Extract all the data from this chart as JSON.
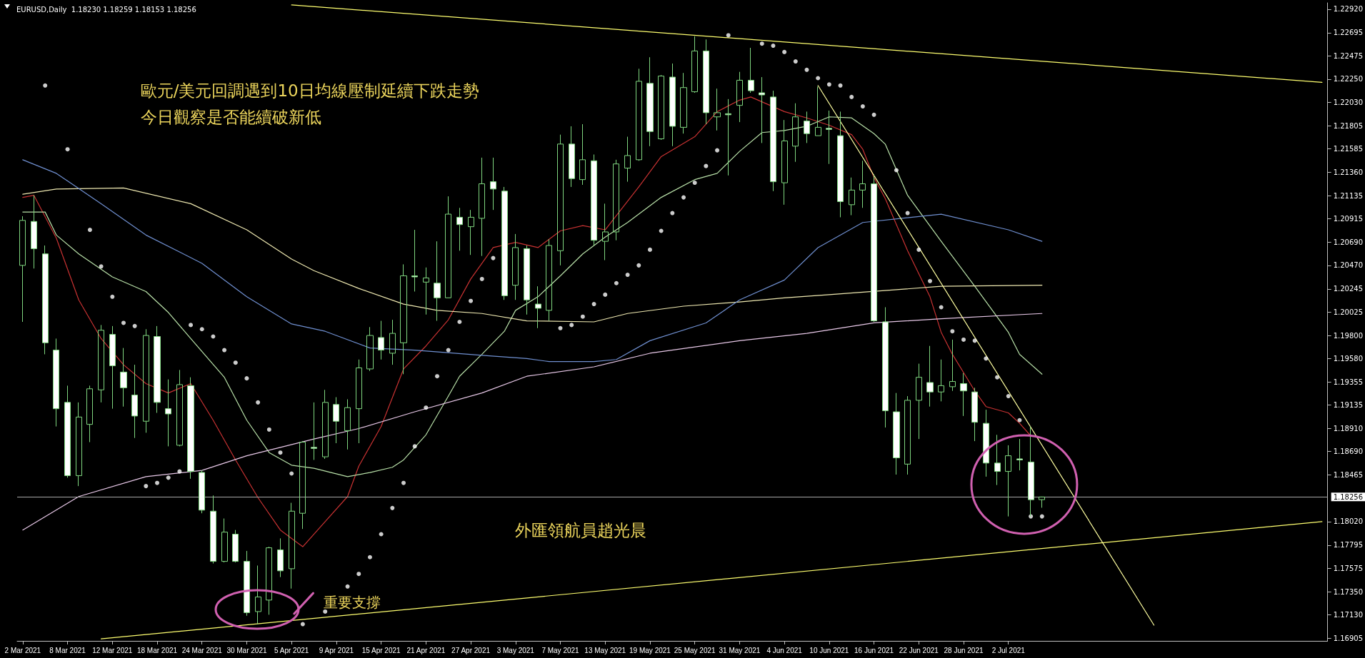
{
  "chart_data": {
    "type": "candlestick",
    "title": "EURUSD,Daily  1.18230 1.18259 1.18153 1.18256",
    "categories": [
      "2 Mar 2021",
      null,
      null,
      null,
      "8 Mar 2021",
      null,
      null,
      null,
      "12 Mar 2021",
      null,
      null,
      null,
      "18 Mar 2021",
      null,
      null,
      null,
      "24 Mar 2021",
      null,
      null,
      null,
      "30 Mar 2021",
      null,
      null,
      null,
      "5 Apr 2021",
      null,
      null,
      null,
      "9 Apr 2021",
      null,
      null,
      null,
      "15 Apr 2021",
      null,
      null,
      null,
      "21 Apr 2021",
      null,
      null,
      null,
      "27 Apr 2021",
      null,
      null,
      null,
      "3 May 2021",
      null,
      null,
      null,
      "7 May 2021",
      null,
      null,
      null,
      "13 May 2021",
      null,
      null,
      null,
      "19 May 2021",
      null,
      null,
      null,
      "25 May 2021",
      null,
      null,
      null,
      "31 May 2021",
      null,
      null,
      null,
      "4 Jun 2021",
      null,
      null,
      null,
      "10 Jun 2021",
      null,
      null,
      null,
      "16 Jun 2021",
      null,
      null,
      null,
      "22 Jun 2021",
      null,
      null,
      null,
      "28 Jun 2021",
      null,
      null,
      null,
      "2 Jul 2021",
      null,
      null,
      null,
      null,
      null,
      null,
      null,
      null,
      null,
      null,
      null,
      null,
      null,
      null,
      null,
      null,
      null,
      null,
      null,
      null,
      null,
      null,
      null,
      null,
      null,
      null,
      null,
      null
    ],
    "color": "#7fd67f",
    "ohlc": [
      [
        1.2047,
        1.2094,
        1.1993,
        1.209
      ],
      [
        1.2089,
        1.2114,
        1.2044,
        1.2063
      ],
      [
        1.2058,
        1.2066,
        1.1962,
        1.1973
      ],
      [
        1.1966,
        1.1977,
        1.1893,
        1.191
      ],
      [
        1.1916,
        1.1932,
        1.1844,
        1.1846
      ],
      [
        1.1846,
        1.1916,
        1.1836,
        1.1902
      ],
      [
        1.1895,
        1.1932,
        1.1878,
        1.1929
      ],
      [
        1.1928,
        1.199,
        1.1916,
        1.1985
      ],
      [
        1.1981,
        1.1989,
        1.191,
        1.1951
      ],
      [
        1.1945,
        1.1968,
        1.1912,
        1.193
      ],
      [
        1.1923,
        1.1952,
        1.1882,
        1.1903
      ],
      [
        1.1898,
        1.1986,
        1.1887,
        1.198
      ],
      [
        1.1979,
        1.1989,
        1.1906,
        1.1916
      ],
      [
        1.191,
        1.1938,
        1.1874,
        1.1905
      ],
      [
        1.1875,
        1.1947,
        1.1874,
        1.1933
      ],
      [
        1.1932,
        1.194,
        1.1843,
        1.185
      ],
      [
        1.1849,
        1.1851,
        1.181,
        1.1813
      ],
      [
        1.1812,
        1.1827,
        1.1762,
        1.1764
      ],
      [
        1.1764,
        1.1805,
        1.1763,
        1.1792
      ],
      [
        1.179,
        1.1794,
        1.1763,
        1.1764
      ],
      [
        1.1764,
        1.1774,
        1.1712,
        1.1715
      ],
      [
        1.1716,
        1.176,
        1.1704,
        1.173
      ],
      [
        1.1727,
        1.1778,
        1.1713,
        1.1777
      ],
      [
        1.1775,
        1.1786,
        1.1749,
        1.1755
      ],
      [
        1.1757,
        1.182,
        1.1738,
        1.1812
      ],
      [
        1.181,
        1.1879,
        1.1795,
        1.1878
      ],
      [
        1.1873,
        1.1916,
        1.1861,
        1.1872
      ],
      [
        1.1864,
        1.1928,
        1.1862,
        1.1916
      ],
      [
        1.1914,
        1.1921,
        1.1877,
        1.1898
      ],
      [
        1.1889,
        1.1919,
        1.1871,
        1.1911
      ],
      [
        1.191,
        1.1957,
        1.1877,
        1.1949
      ],
      [
        1.1948,
        1.1988,
        1.1946,
        1.198
      ],
      [
        1.1978,
        1.1994,
        1.1957,
        1.1966
      ],
      [
        1.1963,
        1.1995,
        1.1952,
        1.1982
      ],
      [
        1.1973,
        1.2048,
        1.1943,
        1.2037
      ],
      [
        1.2037,
        1.2081,
        1.2022,
        1.2036
      ],
      [
        1.2031,
        1.2045,
        1.2,
        1.2035
      ],
      [
        1.203,
        1.207,
        1.1994,
        1.2016
      ],
      [
        1.2016,
        1.2113,
        1.2016,
        1.2096
      ],
      [
        1.2093,
        1.2102,
        1.2061,
        1.2086
      ],
      [
        1.2084,
        1.21,
        1.2057,
        1.2093
      ],
      [
        1.2092,
        1.215,
        1.2056,
        1.2125
      ],
      [
        1.2127,
        1.215,
        1.21,
        1.212
      ],
      [
        1.2118,
        1.2122,
        1.2014,
        1.2018
      ],
      [
        1.2028,
        1.2077,
        1.2014,
        1.2064
      ],
      [
        1.2063,
        1.2066,
        1.2,
        1.2014
      ],
      [
        1.201,
        1.2027,
        1.1987,
        1.2006
      ],
      [
        1.2004,
        1.2072,
        1.1994,
        1.2066
      ],
      [
        1.2061,
        1.2172,
        1.2047,
        1.2163
      ],
      [
        1.2163,
        1.218,
        1.2122,
        1.213
      ],
      [
        1.2129,
        1.2182,
        1.2124,
        1.2148
      ],
      [
        1.2147,
        1.2153,
        1.2066,
        1.2071
      ],
      [
        1.207,
        1.2106,
        1.2052,
        1.2079
      ],
      [
        1.2079,
        1.2148,
        1.2071,
        1.2144
      ],
      [
        1.214,
        1.217,
        1.2127,
        1.2152
      ],
      [
        1.2148,
        1.2235,
        1.2147,
        1.2223
      ],
      [
        1.2221,
        1.2246,
        1.2161,
        1.2175
      ],
      [
        1.2168,
        1.2229,
        1.2167,
        1.2228
      ],
      [
        1.2227,
        1.224,
        1.2161,
        1.218
      ],
      [
        1.2179,
        1.2231,
        1.2173,
        1.2217
      ],
      [
        1.2213,
        1.2266,
        1.2212,
        1.2252
      ],
      [
        1.2252,
        1.2263,
        1.2182,
        1.2193
      ],
      [
        1.2189,
        1.2216,
        1.2176,
        1.2193
      ],
      [
        1.2192,
        1.2206,
        1.2133,
        1.2191
      ],
      [
        1.22,
        1.2232,
        1.2184,
        1.2224
      ],
      [
        1.2224,
        1.2255,
        1.2212,
        1.2214
      ],
      [
        1.2212,
        1.2227,
        1.2164,
        1.221
      ],
      [
        1.2208,
        1.2214,
        1.2118,
        1.2127
      ],
      [
        1.2126,
        1.2186,
        1.2105,
        1.2166
      ],
      [
        1.2161,
        1.2202,
        1.2146,
        1.2189
      ],
      [
        1.2185,
        1.2194,
        1.2164,
        1.2173
      ],
      [
        1.2171,
        1.2218,
        1.2171,
        1.2179
      ],
      [
        1.2178,
        1.2195,
        1.2144,
        1.2177
      ],
      [
        1.2171,
        1.2194,
        1.2093,
        1.2108
      ],
      [
        1.2105,
        1.2131,
        1.2095,
        1.2119
      ],
      [
        1.2119,
        1.2147,
        1.2102,
        1.2125
      ],
      [
        1.2125,
        1.2134,
        1.1993,
        1.1994
      ],
      [
        1.1993,
        1.2007,
        1.1892,
        1.1908
      ],
      [
        1.1907,
        1.1925,
        1.1847,
        1.1863
      ],
      [
        1.1857,
        1.1922,
        1.1847,
        1.1918
      ],
      [
        1.1918,
        1.1953,
        1.1881,
        1.194
      ],
      [
        1.1935,
        1.197,
        1.1912,
        1.1926
      ],
      [
        1.1926,
        1.1957,
        1.1917,
        1.1932
      ],
      [
        1.1931,
        1.1976,
        1.1927,
        1.1936
      ],
      [
        1.1934,
        1.1944,
        1.1903,
        1.1927
      ],
      [
        1.1926,
        1.193,
        1.1879,
        1.1897
      ],
      [
        1.1896,
        1.1909,
        1.1845,
        1.1858
      ],
      [
        1.1858,
        1.1885,
        1.1837,
        1.185
      ],
      [
        1.185,
        1.1875,
        1.1807,
        1.1865
      ],
      [
        1.1862,
        1.1881,
        1.1851,
        1.1861
      ],
      [
        1.1859,
        1.1893,
        1.1807,
        1.1823
      ],
      [
        1.1823,
        1.18259,
        1.18153,
        1.18256
      ],
      null,
      null,
      null,
      null,
      null,
      null,
      null,
      null,
      null,
      null,
      null,
      null,
      null,
      null,
      null,
      null,
      null,
      null,
      null,
      null,
      null,
      null,
      null,
      null,
      null
    ],
    "series": [
      {
        "type": "line",
        "color": "#c83232",
        "values": [
          1.2112,
          1.2114,
          null,
          1.2073,
          null,
          1.2014,
          null,
          1.1977,
          null,
          1.1952,
          null,
          1.1934,
          null,
          1.1925,
          null,
          1.1934,
          null,
          1.1899,
          null,
          1.1861,
          null,
          1.1825,
          null,
          1.1794,
          null,
          1.1778,
          null,
          1.1802,
          null,
          1.1826,
          1.1855,
          null,
          1.1893,
          null,
          1.1948,
          null,
          1.197,
          null,
          1.1995,
          null,
          1.2034,
          null,
          1.2064,
          null,
          1.2069,
          null,
          1.2064,
          null,
          1.208,
          null,
          1.2085,
          null,
          1.2081,
          null,
          null,
          1.2122,
          null,
          1.2151,
          null,
          null,
          1.217,
          null,
          1.2194,
          null,
          1.2205,
          1.2208,
          null,
          null,
          1.2194,
          null,
          1.2188,
          null,
          1.2181,
          null,
          1.2172,
          1.2158,
          1.2131,
          1.2111,
          null,
          1.2061,
          null,
          1.2017,
          1.1983,
          1.1962,
          null,
          1.1927,
          1.1912,
          null,
          1.1906,
          1.1896,
          1.1884,
          null,
          null,
          null,
          null,
          null,
          null,
          null,
          null,
          null,
          null,
          null,
          null,
          null,
          null,
          null,
          null,
          null,
          null,
          null,
          null,
          null,
          null,
          null,
          null,
          null,
          null
        ]
      },
      {
        "type": "line",
        "color": "#b8e0a8",
        "values": [
          1.2098,
          null,
          1.2098,
          1.2076,
          null,
          1.2058,
          null,
          null,
          1.2036,
          null,
          null,
          1.2022,
          null,
          1.2002,
          null,
          1.1977,
          null,
          null,
          1.194,
          null,
          1.1899,
          null,
          1.1868,
          null,
          1.1856,
          null,
          1.1853,
          null,
          null,
          1.1845,
          null,
          1.1849,
          null,
          1.1854,
          1.1861,
          null,
          1.1885,
          null,
          1.1922,
          1.1941,
          null,
          1.1962,
          null,
          1.1984,
          1.2004,
          null,
          1.2017,
          null,
          1.2037,
          null,
          1.2058,
          null,
          1.2074,
          null,
          1.2088,
          null,
          null,
          1.2112,
          null,
          null,
          1.2129,
          null,
          1.2135,
          null,
          1.2156,
          null,
          1.2174,
          null,
          1.2176,
          null,
          1.218,
          null,
          1.2189,
          null,
          1.2188,
          null,
          1.2173,
          1.2163,
          null,
          1.2114,
          null,
          null,
          1.207,
          null,
          null,
          1.2027,
          null,
          null,
          1.1983,
          1.1962,
          null,
          1.1943,
          null,
          null,
          null,
          null,
          null,
          null,
          null,
          null,
          null,
          null,
          null,
          null,
          null,
          null,
          null,
          null,
          null,
          null,
          null,
          null,
          null,
          null,
          null,
          null,
          null
        ]
      },
      {
        "type": "line",
        "color": "#eee8b0",
        "values": [
          1.2115,
          null,
          null,
          1.212,
          null,
          null,
          null,
          null,
          null,
          1.2121,
          null,
          null,
          null,
          null,
          null,
          1.2106,
          null,
          null,
          null,
          null,
          1.2081,
          null,
          null,
          null,
          1.2053,
          null,
          1.2042,
          null,
          null,
          null,
          1.2025,
          null,
          null,
          null,
          1.201,
          null,
          null,
          1.2004,
          null,
          null,
          null,
          1.2001,
          null,
          null,
          null,
          1.1994,
          null,
          null,
          null,
          null,
          null,
          1.1993,
          null,
          null,
          1.2001,
          null,
          null,
          null,
          null,
          1.2008,
          null,
          null,
          null,
          null,
          1.2012,
          null,
          null,
          null,
          1.2016,
          null,
          null,
          null,
          1.2019,
          null,
          null,
          null,
          null,
          null,
          null,
          null,
          null,
          null,
          1.2027,
          null,
          null,
          null,
          null,
          null,
          null,
          null,
          null,
          1.2028,
          null,
          null,
          null,
          null,
          null,
          null,
          null,
          null,
          null,
          null,
          null,
          null,
          null,
          null,
          null,
          null,
          null,
          null,
          null,
          null,
          null,
          null,
          null,
          null,
          null
        ]
      },
      {
        "type": "line",
        "color": "#6f8fd0",
        "values": [
          1.2148,
          null,
          null,
          1.2135,
          null,
          null,
          null,
          1.2106,
          null,
          null,
          null,
          1.2076,
          null,
          null,
          null,
          null,
          1.2049,
          null,
          null,
          null,
          1.2017,
          null,
          null,
          null,
          1.1991,
          null,
          null,
          1.1984,
          null,
          null,
          null,
          1.1968,
          null,
          null,
          null,
          1.1966,
          null,
          null,
          null,
          null,
          null,
          1.1961,
          null,
          null,
          null,
          1.1958,
          null,
          1.1955,
          null,
          null,
          null,
          1.1955,
          null,
          1.1957,
          null,
          null,
          1.1975,
          null,
          null,
          null,
          null,
          1.1992,
          null,
          null,
          1.2014,
          null,
          null,
          null,
          1.2033,
          null,
          null,
          1.2064,
          null,
          null,
          null,
          1.2088,
          null,
          null,
          null,
          null,
          null,
          null,
          1.2096,
          null,
          null,
          null,
          null,
          null,
          1.2081,
          null,
          null,
          1.207,
          null,
          null,
          null,
          null,
          null,
          null,
          null,
          null,
          null,
          null,
          null,
          null,
          null,
          null,
          null,
          null,
          null,
          null,
          null,
          null,
          null,
          null,
          null,
          null,
          null
        ]
      },
      {
        "type": "line",
        "color": "#e8c8e8",
        "values": [
          1.1794,
          null,
          null,
          null,
          null,
          1.1826,
          null,
          null,
          null,
          null,
          null,
          1.1845,
          null,
          null,
          null,
          null,
          1.1851,
          null,
          null,
          null,
          1.1865,
          null,
          null,
          null,
          null,
          null,
          1.1881,
          null,
          null,
          null,
          1.1891,
          null,
          null,
          null,
          null,
          1.1907,
          null,
          null,
          null,
          null,
          null,
          1.1925,
          null,
          null,
          null,
          1.1941,
          null,
          null,
          null,
          null,
          null,
          1.195,
          null,
          null,
          null,
          null,
          1.1963,
          null,
          null,
          null,
          null,
          null,
          null,
          null,
          1.1975,
          null,
          null,
          null,
          null,
          null,
          1.1982,
          null,
          null,
          null,
          null,
          null,
          1.1992,
          null,
          null,
          null,
          null,
          null,
          1.1996,
          null,
          null,
          null,
          null,
          null,
          null,
          null,
          null,
          1.2001,
          null,
          null,
          null,
          null,
          null,
          null,
          null,
          null,
          null,
          null,
          null,
          null,
          null,
          null,
          null,
          null,
          null,
          null,
          null,
          null,
          null,
          null,
          null,
          null,
          null
        ]
      },
      {
        "type": "scatter",
        "color": "#ffffff",
        "marker": "circle",
        "values": [
          null,
          null,
          1.2219,
          null,
          1.2158,
          null,
          1.2081,
          1.2046,
          1.2017,
          1.1992,
          1.1989,
          1.1836,
          1.1839,
          1.1844,
          1.185,
          1.199,
          1.1986,
          1.1979,
          1.1966,
          1.1954,
          1.1939,
          1.1916,
          1.189,
          1.1868,
          1.1848,
          1.1704,
          null,
          1.1716,
          null,
          1.174,
          1.1752,
          1.1768,
          1.179,
          1.1815,
          1.1839,
          1.1874,
          1.1911,
          1.1941,
          1.1966,
          1.1993,
          1.2013,
          1.2034,
          1.2054,
          null,
          null,
          null,
          null,
          null,
          1.1987,
          1.199,
          1.1998,
          1.201,
          1.2019,
          1.203,
          1.2038,
          1.2047,
          1.2062,
          1.208,
          1.2097,
          1.2112,
          1.2126,
          1.2142,
          1.2157,
          1.2267,
          null,
          null,
          1.2259,
          1.2257,
          1.2251,
          1.2242,
          1.2234,
          1.2226,
          1.222,
          1.2219,
          1.2208,
          1.2199,
          1.2191,
          null,
          1.2138,
          1.2097,
          1.2062,
          1.2032,
          1.2007,
          1.1984,
          1.1976,
          1.1975,
          1.1958,
          1.194,
          1.1922,
          1.1899,
          1.1807,
          1.1807,
          null,
          null,
          null,
          null,
          null,
          null,
          null,
          null,
          null,
          null,
          null,
          null,
          null,
          null,
          null,
          null,
          null,
          null,
          null,
          null,
          null,
          null,
          null,
          null,
          null
        ]
      },
      {
        "type": "line",
        "color": "#ffff70",
        "values": [
          null,
          null,
          null,
          null,
          null,
          null,
          null,
          null,
          null,
          null,
          null,
          null,
          null,
          null,
          null,
          null,
          null,
          null,
          null,
          null,
          null,
          null,
          null,
          null,
          1.2296,
          null,
          null,
          null,
          null,
          null,
          null,
          null,
          null,
          null,
          null,
          null,
          null,
          null,
          null,
          null,
          null,
          null,
          null,
          null,
          null,
          null,
          null,
          null,
          null,
          null,
          null,
          null,
          null,
          null,
          null,
          null,
          null,
          null,
          null,
          null,
          null,
          null,
          null,
          null,
          null,
          null,
          null,
          null,
          null,
          null,
          null,
          null,
          null,
          null,
          null,
          null,
          null,
          null,
          null,
          null,
          null,
          null,
          null,
          null,
          null,
          null,
          null,
          null,
          null,
          null,
          null,
          null,
          null,
          null,
          null,
          null,
          null,
          null,
          null,
          null,
          null,
          null,
          null,
          null,
          null,
          null,
          null,
          null,
          null,
          null,
          null,
          null,
          null,
          null,
          null,
          null,
          1.2222
        ]
      },
      {
        "type": "line",
        "color": "#ffff70",
        "values": [
          null,
          null,
          null,
          null,
          null,
          null,
          null,
          1.169,
          null,
          null,
          null,
          null,
          null,
          null,
          null,
          null,
          null,
          null,
          null,
          null,
          null,
          null,
          null,
          null,
          null,
          null,
          null,
          null,
          null,
          null,
          null,
          null,
          null,
          null,
          null,
          null,
          null,
          null,
          null,
          null,
          null,
          null,
          null,
          null,
          null,
          null,
          null,
          null,
          null,
          null,
          null,
          null,
          null,
          null,
          null,
          null,
          null,
          null,
          null,
          null,
          null,
          null,
          null,
          null,
          null,
          null,
          null,
          null,
          null,
          null,
          null,
          null,
          null,
          null,
          null,
          null,
          null,
          null,
          null,
          null,
          null,
          null,
          null,
          null,
          null,
          null,
          null,
          null,
          null,
          null,
          null,
          null,
          null,
          null,
          null,
          null,
          null,
          null,
          null,
          null,
          null,
          null,
          null,
          null,
          null,
          null,
          null,
          null,
          null,
          null,
          null,
          null,
          null,
          null,
          null,
          null,
          1.1802
        ]
      },
      {
        "type": "line",
        "color": "#ffffa0",
        "values": [
          null,
          null,
          null,
          null,
          null,
          null,
          null,
          null,
          null,
          null,
          null,
          null,
          null,
          null,
          null,
          null,
          null,
          null,
          null,
          null,
          null,
          null,
          null,
          null,
          null,
          null,
          null,
          null,
          null,
          null,
          null,
          null,
          null,
          null,
          null,
          null,
          null,
          null,
          null,
          null,
          null,
          null,
          null,
          null,
          null,
          null,
          null,
          null,
          null,
          null,
          null,
          null,
          null,
          null,
          null,
          null,
          null,
          null,
          null,
          null,
          null,
          null,
          null,
          null,
          null,
          null,
          null,
          null,
          null,
          null,
          null,
          1.2219,
          null,
          null,
          null,
          null,
          null,
          null,
          null,
          null,
          null,
          null,
          null,
          null,
          null,
          null,
          null,
          null,
          null,
          null,
          null,
          null,
          null,
          null,
          null,
          null,
          null,
          null,
          null,
          null,
          null,
          1.1703,
          null,
          null,
          null,
          null,
          null,
          null,
          null,
          null,
          null,
          null,
          null,
          null,
          null,
          null,
          null
        ]
      }
    ],
    "ylim": [
      1.1688,
      1.2298
    ],
    "yticks": [
      {
        "value": 1.2292,
        "label": "1.22920"
      },
      {
        "value": 1.22695,
        "label": "1.22695"
      },
      {
        "value": 1.22475,
        "label": "1.22475"
      },
      {
        "value": 1.2225,
        "label": "1.22250"
      },
      {
        "value": 1.2203,
        "label": "1.22030"
      },
      {
        "value": 1.21805,
        "label": "1.21805"
      },
      {
        "value": 1.21585,
        "label": "1.21585"
      },
      {
        "value": 1.2136,
        "label": "1.21360"
      },
      {
        "value": 1.21135,
        "label": "1.21135"
      },
      {
        "value": 1.20915,
        "label": "1.20915"
      },
      {
        "value": 1.2069,
        "label": "1.20690"
      },
      {
        "value": 1.2047,
        "label": "1.20470"
      },
      {
        "value": 1.20245,
        "label": "1.20245"
      },
      {
        "value": 1.20025,
        "label": "1.20025"
      },
      {
        "value": 1.198,
        "label": "1.19800"
      },
      {
        "value": 1.1958,
        "label": "1.19580"
      },
      {
        "value": 1.19355,
        "label": "1.19355"
      },
      {
        "value": 1.19135,
        "label": "1.19135"
      },
      {
        "value": 1.1891,
        "label": "1.18910"
      },
      {
        "value": 1.1869,
        "label": "1.18690"
      },
      {
        "value": 1.18465,
        "label": "1.18465"
      },
      {
        "value": 1.1802,
        "label": "1.18020"
      },
      {
        "value": 1.17795,
        "label": "1.17795"
      },
      {
        "value": 1.17575,
        "label": "1.17575"
      },
      {
        "value": 1.1735,
        "label": "1.17350"
      },
      {
        "value": 1.1713,
        "label": "1.17130"
      },
      {
        "value": 1.16905,
        "label": "1.16905"
      }
    ],
    "ref_lines": [
      {
        "axis": "y",
        "value": 1.18256,
        "label": "1.18256",
        "color": "#a8a8a8"
      }
    ],
    "annotations": [
      "歐元/美元回調遇到10日均線壓制延續下跌走勢",
      "今日觀察是否能續破新低",
      "外匯領航員趙光晨",
      "重要支撐"
    ],
    "grid": false
  }
}
